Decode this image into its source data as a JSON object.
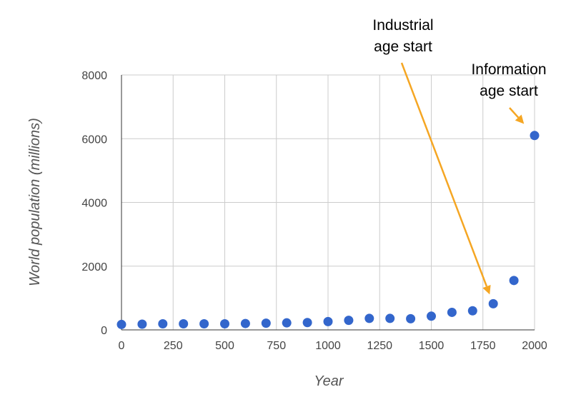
{
  "chart_data": {
    "type": "scatter",
    "title": "",
    "xlabel": "Year",
    "ylabel": "World population (millions)",
    "xlim": [
      0,
      2000
    ],
    "ylim": [
      0,
      8000
    ],
    "x_ticks": [
      "0",
      "250",
      "500",
      "750",
      "1000",
      "1250",
      "1500",
      "1750",
      "2000"
    ],
    "y_ticks": [
      "0",
      "2000",
      "4000",
      "6000",
      "8000"
    ],
    "grid": true,
    "legend": "none",
    "series": [
      {
        "color": "#3366cc",
        "points": [
          {
            "x": 0,
            "y": 170
          },
          {
            "x": 100,
            "y": 180
          },
          {
            "x": 200,
            "y": 190
          },
          {
            "x": 300,
            "y": 190
          },
          {
            "x": 400,
            "y": 190
          },
          {
            "x": 500,
            "y": 190
          },
          {
            "x": 600,
            "y": 200
          },
          {
            "x": 700,
            "y": 210
          },
          {
            "x": 800,
            "y": 220
          },
          {
            "x": 900,
            "y": 230
          },
          {
            "x": 1000,
            "y": 260
          },
          {
            "x": 1100,
            "y": 300
          },
          {
            "x": 1200,
            "y": 360
          },
          {
            "x": 1300,
            "y": 360
          },
          {
            "x": 1400,
            "y": 350
          },
          {
            "x": 1500,
            "y": 430
          },
          {
            "x": 1600,
            "y": 550
          },
          {
            "x": 1700,
            "y": 600
          },
          {
            "x": 1800,
            "y": 820
          },
          {
            "x": 1900,
            "y": 1550
          },
          {
            "x": 2000,
            "y": 6100
          }
        ]
      }
    ],
    "annotations": [
      {
        "lines": [
          "Industrial",
          "age start"
        ],
        "points_to": {
          "x": 1800,
          "y": 820
        },
        "arrow_color": "#f5a623"
      },
      {
        "lines": [
          "Information",
          "age start"
        ],
        "points_to": {
          "x": 2000,
          "y": 6100
        },
        "arrow_color": "#f5a623"
      }
    ]
  }
}
